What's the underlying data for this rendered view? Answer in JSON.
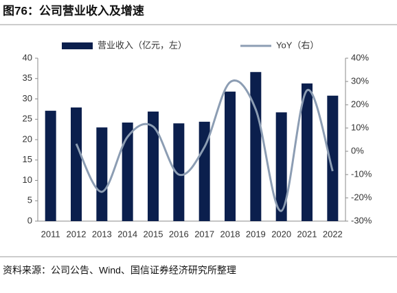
{
  "chart_data": {
    "type": "bar-line",
    "title": "图76：公司营业收入及增速",
    "source": "资料来源：公司公告、Wind、国信证券经济研究所整理",
    "categories": [
      "2011",
      "2012",
      "2013",
      "2014",
      "2015",
      "2016",
      "2017",
      "2018",
      "2019",
      "2020",
      "2021",
      "2022"
    ],
    "series": [
      {
        "name": "营业收入（亿元，左）",
        "type": "bar",
        "color": "#0b1f4d",
        "values": [
          27.1,
          27.9,
          23.0,
          24.2,
          26.9,
          24.0,
          24.4,
          31.8,
          36.6,
          26.7,
          33.8,
          30.8
        ]
      },
      {
        "name": "YoY（右）",
        "type": "line",
        "axis": "y2",
        "color": "#8c9db3",
        "values": [
          null,
          3.2,
          -17.4,
          6.2,
          10.6,
          -10.0,
          1.8,
          29.7,
          18.0,
          -25.6,
          26.2,
          -8.5
        ]
      }
    ],
    "ylim": [
      0,
      40
    ],
    "yticks": [
      0,
      5,
      10,
      15,
      20,
      25,
      30,
      35,
      40
    ],
    "y2lim": [
      -30,
      40
    ],
    "y2ticks": [
      {
        "value": -30,
        "label": "-30%"
      },
      {
        "value": -20,
        "label": "-20%"
      },
      {
        "value": -10,
        "label": "-10%"
      },
      {
        "value": 0,
        "label": "0%"
      },
      {
        "value": 10,
        "label": "10%"
      },
      {
        "value": 20,
        "label": "20%"
      },
      {
        "value": 30,
        "label": "30%"
      },
      {
        "value": 40,
        "label": "40%"
      }
    ],
    "legend": "top"
  }
}
